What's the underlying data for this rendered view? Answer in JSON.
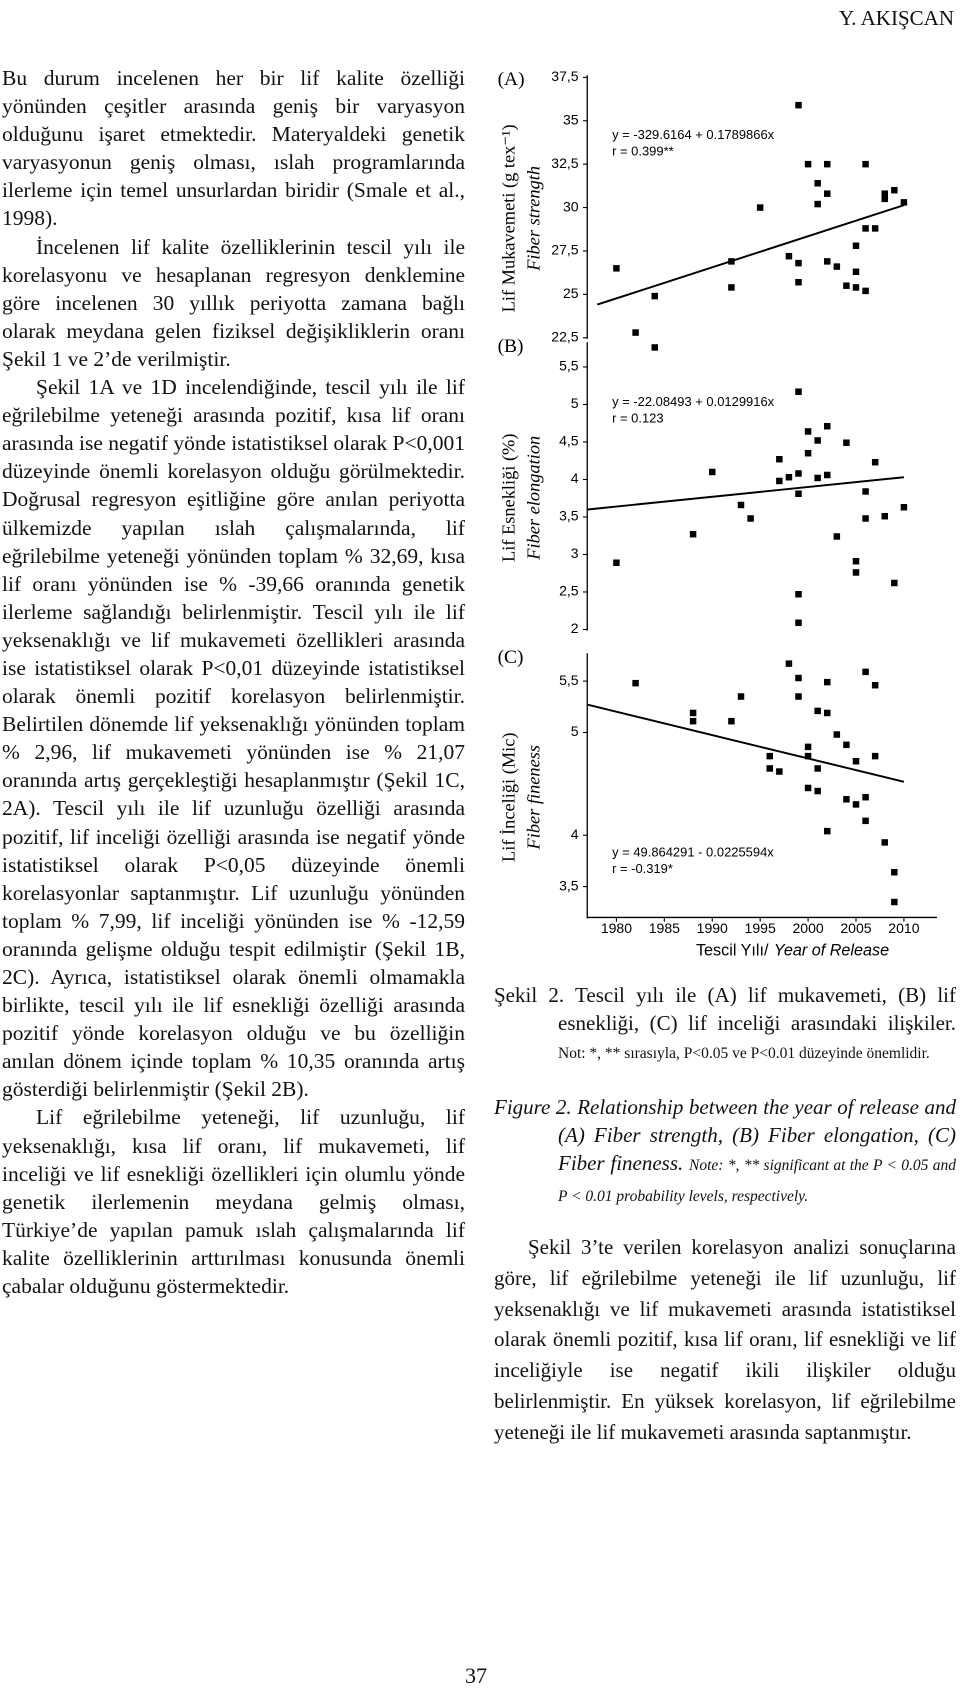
{
  "header": {
    "running_head": "Y. AKIŞCAN"
  },
  "left_column": {
    "paragraphs": [
      "Bu durum incelenen her bir lif kalite özelliği yönünden çeşitler arasında geniş bir varyasyon olduğunu işaret etmektedir. Materyaldeki genetik varyasyonun geniş olması, ıslah programlarında ilerleme için temel unsurlardan biridir (Smale et al., 1998).",
      "İncelenen lif kalite özelliklerinin tescil yılı ile korelasyonu ve hesaplanan regresyon denklemine göre incelenen 30 yıllık periyotta zamana bağlı olarak meydana gelen fiziksel değişikliklerin oranı Şekil 1 ve 2’de verilmiştir.",
      "Şekil 1A ve 1D incelendiğinde, tescil yılı ile lif eğrilebilme yeteneği arasında pozitif, kısa lif oranı arasında ise negatif yönde istatistiksel olarak P<0,001 düzeyinde önemli korelasyon olduğu görülmektedir. Doğrusal regresyon eşitliğine göre anılan periyotta ülkemizde yapılan ıslah çalışmalarında, lif eğrilebilme yeteneği yönünden toplam % 32,69, kısa lif oranı yönünden ise % -39,66 oranında genetik ilerleme sağlandığı belirlenmiştir. Tescil yılı ile lif yeksenaklığı ve lif mukavemeti özellikleri arasında ise istatistiksel olarak P<0,01 düzeyinde istatistiksel olarak önemli pozitif korelasyon belirlenmiştir. Belirtilen dönemde lif yeksenaklığı yönünden toplam % 2,96, lif mukavemeti yönünden ise % 21,07 oranında artış gerçekleştiği hesaplanmıştır (Şekil 1C, 2A). Tescil yılı ile lif uzunluğu özelliği arasında pozitif, lif inceliği özelliği arasında ise negatif yönde istatistiksel olarak P<0,05 düzeyinde önemli korelasyonlar saptanmıştır. Lif uzunluğu yönünden toplam % 7,99, lif inceliği yönünden ise % -12,59 oranında gelişme olduğu tespit edilmiştir (Şekil 1B, 2C). Ayrıca, istatistiksel olarak önemli olmamakla birlikte, tescil yılı ile lif esnekliği özelliği arasında pozitif yönde korelasyon olduğu ve bu özelliğin anılan dönem içinde toplam % 10,35 oranında artış gösterdiği belirlenmiştir (Şekil 2B).",
      "Lif eğrilebilme yeteneği, lif uzunluğu, lif yeksenaklığı, kısa lif oranı, lif mukavemeti, lif inceliği ve lif esnekliği özellikleri için olumlu yönde genetik ilerlemenin meydana gelmiş olması, Türkiye’de yapılan pamuk ıslah çalışmalarında lif kalite özelliklerinin arttırılması konusunda önemli çabalar olduğunu göstermektedir."
    ]
  },
  "chart_data": [
    {
      "type": "scatter",
      "panel": "(A)",
      "ylabel": "Lif Mukavemeti (g tex⁻¹)",
      "ylabel_en": "Fiber strength",
      "equation": "y = -329.6164 + 0.1789866x",
      "r": "r = 0.399**",
      "color": "#000000",
      "x": [
        1980,
        1982,
        1984,
        1992,
        1992,
        1995,
        1999,
        1998,
        1999,
        1999,
        2000,
        2001,
        2002,
        2002,
        2001,
        2002,
        2003,
        2004,
        2005,
        2005,
        2005,
        2006,
        2006,
        2006,
        2007,
        2008,
        2008,
        2009,
        2010
      ],
      "y": [
        26.5,
        22.8,
        24.9,
        26.9,
        25.4,
        30,
        35.9,
        27.2,
        26.8,
        25.7,
        32.5,
        31.4,
        32.5,
        30.8,
        30.2,
        26.9,
        26.6,
        25.5,
        25.4,
        27.8,
        26.3,
        32.5,
        25.2,
        28.8,
        28.8,
        30.8,
        30.5,
        31,
        30.3
      ],
      "trend": {
        "x": [
          1978,
          2010
        ],
        "y": [
          24.41,
          30.14
        ]
      },
      "xlim": [
        1977,
        2013
      ],
      "ylim": [
        22.5,
        37.5
      ],
      "yticks": [
        {
          "value": 37.5,
          "label": "37,5"
        },
        35,
        {
          "value": 32.5,
          "label": "32,5"
        },
        30,
        {
          "value": 27.5,
          "label": "27,5"
        },
        25,
        {
          "value": 22.5,
          "label": "22,5"
        }
      ]
    },
    {
      "type": "scatter",
      "panel": "(B)",
      "ylabel": "Lif Esnekliği (%)",
      "ylabel_en": "Fiber elongation",
      "equation": "y = -22.08493 + 0.0129916x",
      "r": "r = 0.123",
      "color": "#000000",
      "x": [
        1980,
        1984,
        1988,
        1990,
        1993,
        1994,
        1997,
        1997,
        1998,
        1999,
        1999,
        1999,
        1999,
        1999,
        2000,
        2000,
        2001,
        2001,
        2002,
        2002,
        2003,
        2004,
        2005,
        2005,
        2006,
        2006,
        2007,
        2008,
        2009,
        2010
      ],
      "y": [
        2.89,
        5.76,
        3.27,
        4.1,
        3.66,
        3.48,
        4.27,
        3.98,
        4.03,
        5.17,
        4.08,
        3.81,
        2.47,
        2.09,
        4.64,
        4.35,
        4.02,
        4.52,
        4.71,
        4.06,
        3.24,
        4.49,
        2.76,
        2.91,
        3.48,
        3.84,
        4.23,
        3.51,
        2.62,
        3.63
      ],
      "trend": {
        "x": [
          1977,
          2010
        ],
        "y": [
          3.6,
          4.03
        ]
      },
      "xlim": [
        1977,
        2013
      ],
      "ylim": [
        2,
        5.8
      ],
      "yticks": [
        {
          "value": 5.5,
          "label": "5,5"
        },
        5,
        {
          "value": 4.5,
          "label": "4,5"
        },
        4,
        {
          "value": 3.5,
          "label": "3,5"
        },
        3,
        {
          "value": 2.5,
          "label": "2,5"
        },
        2
      ]
    },
    {
      "type": "scatter",
      "panel": "(C)",
      "ylabel": "Lif İnceliği (Mic)",
      "ylabel_en": "Fiber fineness",
      "equation": "y = 49.864291 - 0.0225594x",
      "r": "r = -0.319*",
      "color": "#000000",
      "xlabel": "Tescil Yılı/",
      "xlabel_en": "Year of Release",
      "x": [
        1982,
        1988,
        1988,
        1993,
        1992,
        1996,
        1996,
        1997,
        1998,
        1999,
        1999,
        2000,
        2000,
        2000,
        2001,
        2001,
        2001,
        2002,
        2002,
        2002,
        2003,
        2004,
        2004,
        2005,
        2005,
        2006,
        2006,
        2006,
        2007,
        2007,
        2008,
        2009,
        2009
      ],
      "y": [
        5.48,
        5.11,
        5.19,
        5.35,
        5.11,
        4.77,
        4.65,
        4.62,
        5.67,
        5.53,
        5.35,
        4.77,
        4.46,
        4.86,
        5.21,
        4.65,
        4.43,
        4.04,
        5.49,
        5.19,
        4.98,
        4.88,
        4.35,
        4.3,
        4.72,
        4.37,
        5.59,
        4.14,
        4.77,
        5.46,
        3.93,
        3.35,
        3.64
      ],
      "trend": {
        "x": [
          1977,
          2010
        ],
        "y": [
          5.27,
          4.52
        ]
      },
      "xlim": [
        1977,
        2013
      ],
      "ylim": [
        3.2,
        5.75
      ],
      "xticks": [
        1980,
        1985,
        1990,
        1995,
        2000,
        2005,
        2010
      ],
      "yticks": [
        {
          "value": 5.5,
          "label": "5,5"
        },
        5,
        4,
        {
          "value": 3.5,
          "label": "3,5"
        }
      ]
    }
  ],
  "caption": {
    "tr_label": "Şekil 2.",
    "tr_text": "Tescil yılı ile (A) lif mukavemeti, (B) lif esnekliği, (C) lif inceliği arasındaki ilişkiler.",
    "tr_note": "Not: *, ** sırasıyla, P<0.05 ve P<0.01 düzeyinde önemlidir.",
    "en_label": "Figure 2.",
    "en_text": "Relationship between the year of release and (A) Fiber strength, (B) Fiber elongation, (C) Fiber fineness.",
    "en_note": "Note: *, ** significant at the P < 0.05 and P < 0.01 probability levels, respectively."
  },
  "right_column": {
    "paragraphs": [
      "Şekil 3’te verilen korelasyon analizi sonuçlarına göre, lif eğrilebilme yeteneği ile lif uzunluğu, lif yeksenaklığı ve lif mukavemeti arasında istatistiksel olarak önemli pozitif, kısa lif oranı, lif esnekliği ve lif inceliğiyle ise negatif ikili ilişkiler olduğu belirlenmiştir. En yüksek korelasyon, lif eğrilebilme yeteneği ile lif mukavemeti arasında saptanmıştır."
    ]
  },
  "footer": {
    "page_number": "37"
  }
}
